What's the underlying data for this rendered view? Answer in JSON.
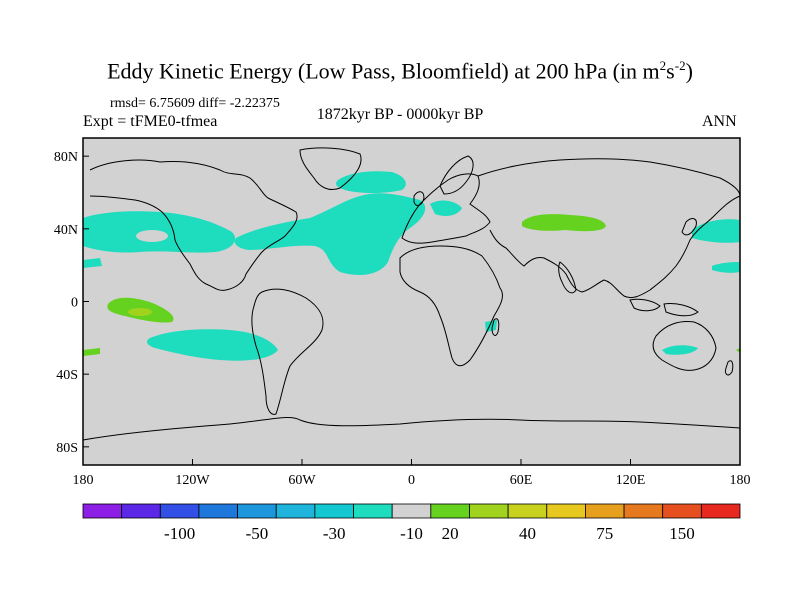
{
  "title": {
    "main": "Eddy Kinetic Energy (Low Pass, Bloomfield) at 200 hPa (in m",
    "sup1": "2",
    "s": "s",
    "sup2": "-2",
    "close": ")"
  },
  "stats": {
    "text": "rmsd= 6.75609 diff= -2.22375"
  },
  "experiment": {
    "text": "Expt = tFME0-tfmea"
  },
  "period": {
    "text": "1872kyr BP - 0000kyr BP"
  },
  "season": {
    "text": "ANN"
  },
  "map": {
    "lon_range": [
      -180,
      180
    ],
    "lat_range": [
      -90,
      90
    ],
    "ocean_land_fill": "#d2d2d2",
    "coast_color": "#000000",
    "y_ticks": [
      "80N",
      "40N",
      "0",
      "40S",
      "80S"
    ],
    "y_tick_lats": [
      80,
      40,
      0,
      -40,
      -80
    ],
    "x_ticks": [
      "180",
      "120W",
      "60W",
      "0",
      "60E",
      "120E",
      "180"
    ],
    "x_tick_lons": [
      -180,
      -120,
      -60,
      0,
      60,
      120,
      180
    ]
  },
  "colorbar": {
    "colors": [
      "#8c1ee6",
      "#5a28e6",
      "#3250e6",
      "#1e78dc",
      "#1e96dc",
      "#1eb4dc",
      "#14c8d2",
      "#1edcbe",
      "#d2d2d2",
      "#64d21e",
      "#a0d21e",
      "#c8d21e",
      "#e6c81e",
      "#e6a01e",
      "#e6781e",
      "#e6501e",
      "#e6281e"
    ],
    "labels": [
      "-100",
      "-50",
      "-30",
      "-10",
      "20",
      "40",
      "75",
      "150"
    ]
  },
  "anomalies": {
    "cyan_color": "#1edcbe",
    "green_color": "#64d21e",
    "lightgreen_color": "#a0d21e"
  }
}
